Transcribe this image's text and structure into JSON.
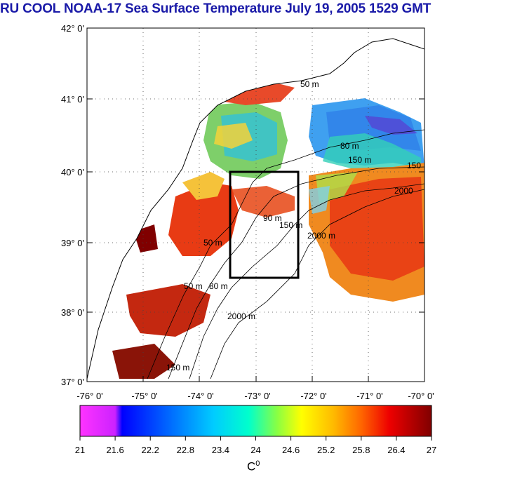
{
  "title": "RU COOL  NOAA-17 Sea Surface Temperature July 19, 2005 1529 GMT",
  "map": {
    "lat_labels": [
      "42° 0'",
      "41° 0'",
      "40° 0'",
      "39° 0'",
      "38° 0'",
      "37° 0'"
    ],
    "lon_labels": [
      "-76° 0'",
      "-75° 0'",
      "-74° 0'",
      "-73° 0'",
      "-72° 0'",
      "-71° 0'",
      "-70° 0'"
    ],
    "lat_range": [
      37,
      42
    ],
    "lon_range": [
      -76,
      -70
    ],
    "study_box": {
      "lon": [
        -73.45,
        -72.45
      ],
      "lat": [
        38.5,
        40.0
      ]
    },
    "depth_labels": [
      "50 m",
      "80 m",
      "150 m",
      "2000 m",
      "2000",
      "150",
      "90 m",
      "50 m",
      "150 m",
      "50 m",
      "80 m"
    ]
  },
  "colorbar": {
    "ticks": [
      "21",
      "21.6",
      "22.2",
      "22.8",
      "23.4",
      "24",
      "24.6",
      "25.2",
      "25.8",
      "26.4",
      "27"
    ],
    "min": 21,
    "max": 27,
    "unit": "C",
    "unit_sup": "0",
    "colors": [
      "#ff33ff",
      "#cc22ff",
      "#0000ff",
      "#0066ff",
      "#00ccff",
      "#00ffdd",
      "#66ff66",
      "#ddff00",
      "#ffcc00",
      "#ff7700",
      "#ee0000",
      "#880000"
    ]
  },
  "colors": {
    "title": "#1a1aa8",
    "warm": "#e83b14",
    "cool": "#3fa0f0"
  }
}
